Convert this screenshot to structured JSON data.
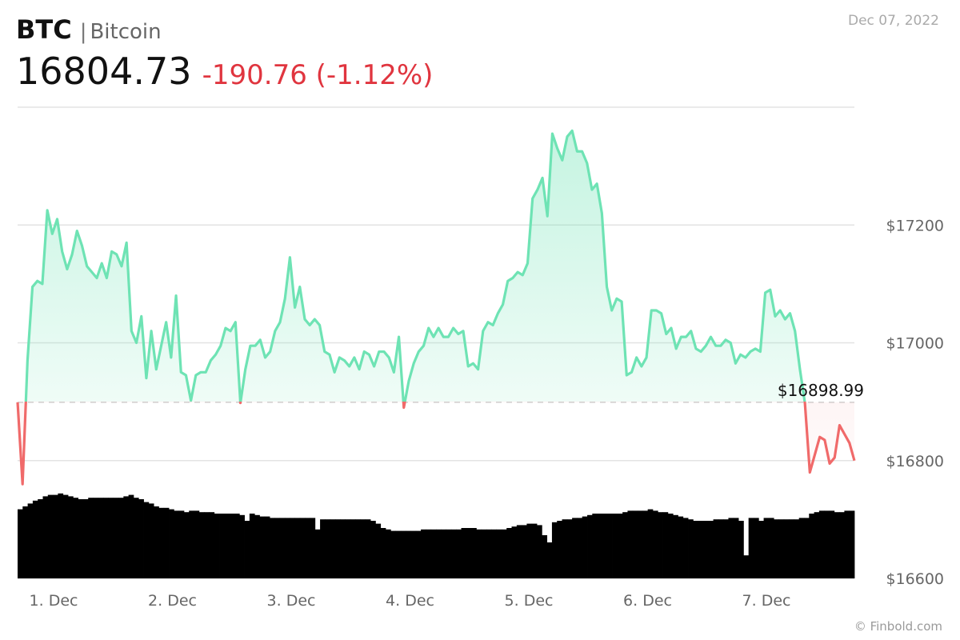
{
  "header": {
    "symbol": "BTC",
    "separator": "|",
    "name": "Bitcoin",
    "price": "16804.73",
    "change": "-190.76 (-1.12%)",
    "date": "Dec 07, 2022"
  },
  "credit": "© Finbold.com",
  "colors": {
    "up": "#6ee3b4",
    "down": "#f06a6a",
    "change_text": "#e0353f"
  },
  "chart_data": {
    "type": "line",
    "x_tick_labels": [
      "1. Dec",
      "2. Dec",
      "3. Dec",
      "4. Dec",
      "5. Dec",
      "6. Dec",
      "7. Dec"
    ],
    "y_tick_labels": [
      "$17200",
      "$17000",
      "$16800",
      "$16600"
    ],
    "y_ticks": [
      17200,
      17000,
      16800,
      16600
    ],
    "ylim": [
      16600,
      17400
    ],
    "reference_value": 16898.99,
    "reference_label": "$16898.99",
    "grid": true,
    "series": [
      {
        "values": [
          16899,
          16760,
          16970,
          17095,
          17105,
          17100,
          17225,
          17185,
          17210,
          17155,
          17125,
          17150,
          17190,
          17165,
          17130,
          17120,
          17110,
          17135,
          17110,
          17155,
          17150,
          17130,
          17170,
          17020,
          17000,
          17045,
          16940,
          17020,
          16955,
          16995,
          17035,
          16975,
          17080,
          16950,
          16945,
          16902,
          16945,
          16950,
          16950,
          16970,
          16980,
          16995,
          17025,
          17020,
          17035,
          16898,
          16955,
          16995,
          16995,
          17005,
          16975,
          16985,
          17020,
          17035,
          17075,
          17145,
          17060,
          17095,
          17040,
          17030,
          17040,
          17030,
          16985,
          16980,
          16950,
          16975,
          16970,
          16960,
          16975,
          16955,
          16985,
          16980,
          16960,
          16985,
          16985,
          16975,
          16950,
          17010,
          16890,
          16935,
          16965,
          16985,
          16995,
          17025,
          17010,
          17025,
          17010,
          17010,
          17025,
          17015,
          17020,
          16960,
          16965,
          16955,
          17020,
          17035,
          17030,
          17050,
          17065,
          17105,
          17110,
          17120,
          17115,
          17135,
          17245,
          17260,
          17280,
          17215,
          17355,
          17330,
          17310,
          17350,
          17360,
          17325,
          17325,
          17305,
          17260,
          17270,
          17220,
          17095,
          17055,
          17075,
          17070,
          16945,
          16950,
          16975,
          16960,
          16975,
          17055,
          17055,
          17050,
          17015,
          17025,
          16990,
          17010,
          17010,
          17020,
          16990,
          16985,
          16995,
          17010,
          16995,
          16995,
          17005,
          17000,
          16965,
          16980,
          16975,
          16985,
          16990,
          16985,
          17085,
          17090,
          17045,
          17055,
          17040,
          17050,
          17020,
          16955,
          16898,
          16780,
          16810,
          16840,
          16835,
          16795,
          16805,
          16860,
          16845,
          16830,
          16800
        ]
      }
    ],
    "volume": [
      0.48,
      0.5,
      0.52,
      0.54,
      0.55,
      0.57,
      0.58,
      0.58,
      0.59,
      0.58,
      0.57,
      0.56,
      0.55,
      0.55,
      0.56,
      0.56,
      0.56,
      0.56,
      0.56,
      0.56,
      0.56,
      0.57,
      0.58,
      0.56,
      0.55,
      0.53,
      0.52,
      0.5,
      0.49,
      0.49,
      0.48,
      0.47,
      0.47,
      0.46,
      0.47,
      0.47,
      0.46,
      0.46,
      0.46,
      0.45,
      0.45,
      0.45,
      0.45,
      0.45,
      0.44,
      0.4,
      0.45,
      0.44,
      0.43,
      0.43,
      0.42,
      0.42,
      0.42,
      0.42,
      0.42,
      0.42,
      0.42,
      0.42,
      0.42,
      0.34,
      0.41,
      0.41,
      0.41,
      0.41,
      0.41,
      0.41,
      0.41,
      0.41,
      0.41,
      0.41,
      0.4,
      0.38,
      0.35,
      0.34,
      0.33,
      0.33,
      0.33,
      0.33,
      0.33,
      0.33,
      0.34,
      0.34,
      0.34,
      0.34,
      0.34,
      0.34,
      0.34,
      0.34,
      0.35,
      0.35,
      0.35,
      0.34,
      0.34,
      0.34,
      0.34,
      0.34,
      0.34,
      0.35,
      0.36,
      0.37,
      0.37,
      0.38,
      0.38,
      0.37,
      0.3,
      0.25,
      0.39,
      0.4,
      0.41,
      0.41,
      0.42,
      0.42,
      0.43,
      0.44,
      0.45,
      0.45,
      0.45,
      0.45,
      0.45,
      0.45,
      0.46,
      0.47,
      0.47,
      0.47,
      0.47,
      0.48,
      0.47,
      0.46,
      0.46,
      0.45,
      0.44,
      0.43,
      0.42,
      0.41,
      0.4,
      0.4,
      0.4,
      0.4,
      0.41,
      0.41,
      0.41,
      0.42,
      0.42,
      0.4,
      0.16,
      0.42,
      0.42,
      0.4,
      0.42,
      0.42,
      0.41,
      0.41,
      0.41,
      0.41,
      0.41,
      0.42,
      0.42,
      0.45,
      0.46,
      0.47,
      0.47,
      0.47,
      0.46,
      0.46,
      0.47,
      0.47
    ]
  }
}
